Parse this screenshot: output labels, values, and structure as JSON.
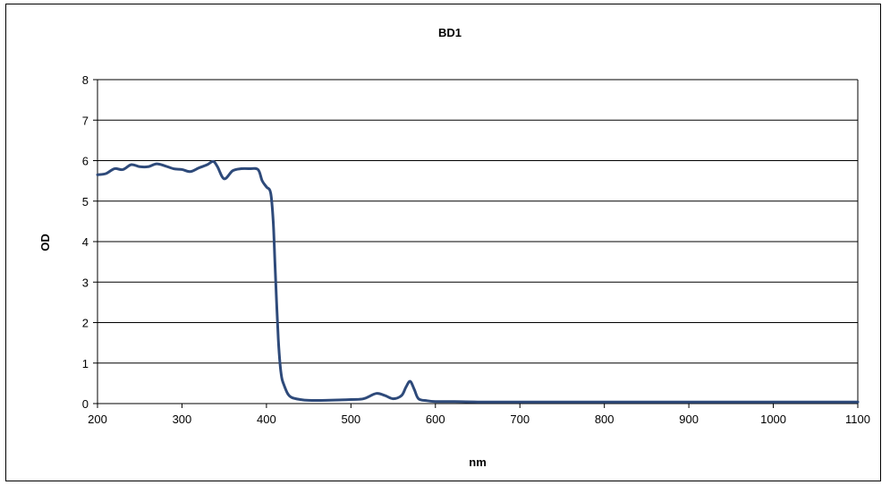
{
  "chart_data": {
    "type": "line",
    "title": "BD1",
    "xlabel": "nm",
    "ylabel": "OD",
    "xlim": [
      200,
      1100
    ],
    "ylim": [
      0,
      8
    ],
    "xticks": [
      200,
      300,
      400,
      500,
      600,
      700,
      800,
      900,
      1000,
      1100
    ],
    "yticks": [
      0,
      1,
      2,
      3,
      4,
      5,
      6,
      7,
      8
    ],
    "grid": {
      "horizontal": true,
      "vertical": false
    },
    "legend": "none",
    "series": [
      {
        "color": "#2E4A7A",
        "x": [
          200,
          210,
          220,
          230,
          240,
          250,
          260,
          270,
          280,
          290,
          300,
          310,
          320,
          330,
          337,
          342,
          350,
          360,
          370,
          380,
          390,
          395,
          400,
          405,
          408,
          410,
          412,
          414,
          416,
          418,
          420,
          425,
          430,
          440,
          450,
          470,
          500,
          515,
          530,
          540,
          550,
          560,
          565,
          570,
          575,
          580,
          590,
          600,
          620,
          650,
          700,
          800,
          900,
          1000,
          1100
        ],
        "y": [
          5.65,
          5.68,
          5.8,
          5.78,
          5.9,
          5.85,
          5.85,
          5.92,
          5.87,
          5.8,
          5.78,
          5.73,
          5.82,
          5.9,
          5.98,
          5.85,
          5.55,
          5.75,
          5.8,
          5.8,
          5.78,
          5.5,
          5.35,
          5.2,
          4.5,
          3.5,
          2.5,
          1.6,
          1.0,
          0.65,
          0.5,
          0.25,
          0.15,
          0.1,
          0.08,
          0.08,
          0.1,
          0.12,
          0.25,
          0.2,
          0.12,
          0.2,
          0.4,
          0.55,
          0.35,
          0.12,
          0.07,
          0.05,
          0.05,
          0.04,
          0.04,
          0.04,
          0.04,
          0.04,
          0.04
        ]
      }
    ]
  }
}
